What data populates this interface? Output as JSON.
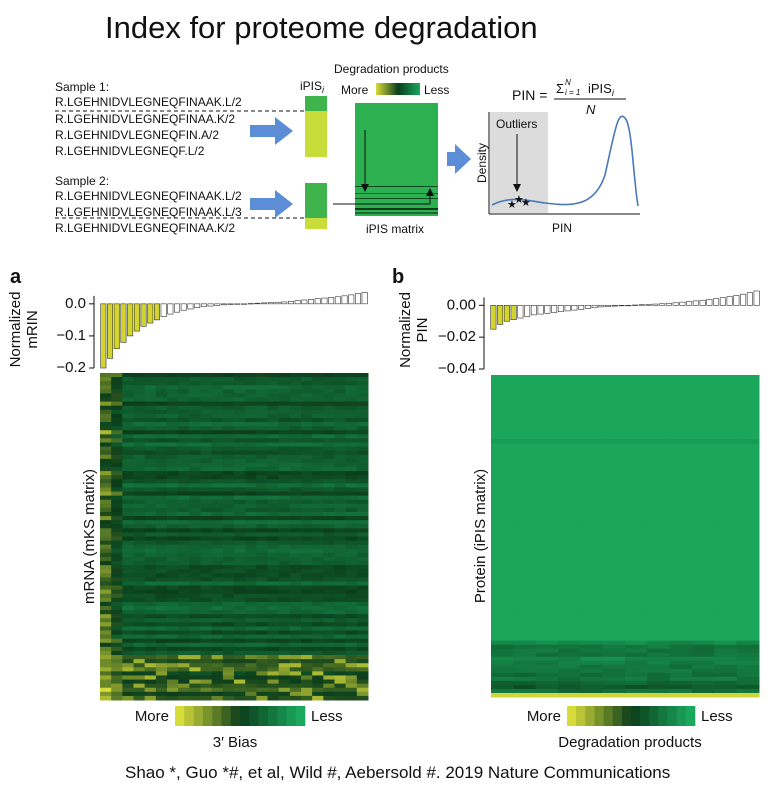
{
  "title": "Index for proteome degradation",
  "schematic": {
    "sample1_label": "Sample 1:",
    "sample1_peptides": [
      "R.LGEHNIDVLEGNEQFINAAK.L/2",
      "R.LGEHNIDVLEGNEQFINAA.K/2",
      "R.LGEHNIDVLEGNEQFIN.A/2",
      "R.LGEHNIDVLEGNEQF.L/2"
    ],
    "sample2_label": "Sample 2:",
    "sample2_peptides": [
      "R.LGEHNIDVLEGNEQFINAAK.L/2",
      "R.LGEHNIDVLEGNEQFINAAK.L/3",
      "R.LGEHNIDVLEGNEQFINAA.K/2"
    ],
    "ipis_label": "iPIS",
    "ipis_subscript": "i",
    "degradation_label": "Degradation products",
    "more": "More",
    "less": "Less",
    "matrix_label": "iPIS matrix",
    "formula": {
      "lhs": "PIN =",
      "sum": "Σ",
      "lower": "i = 1",
      "upper": "N",
      "term": "iPIS",
      "term_subscript": "i",
      "denominator": "N"
    },
    "density_label": "Density",
    "outliers_label": "Outliers",
    "pin_label": "PIN"
  },
  "panels": [
    {
      "letter": "a",
      "heatmap_label": "mRNA (mKS matrix)",
      "more": "More",
      "less": "Less",
      "xlabel": "3′ Bias"
    },
    {
      "letter": "b",
      "heatmap_label": "Protein (iPIS matrix)",
      "more": "More",
      "less": "Less",
      "xlabel": "Degradation products"
    }
  ],
  "chart_data": [
    {
      "type": "bar",
      "ylabel": [
        "Normalized",
        "mRIN"
      ],
      "categories": [
        null,
        null,
        null,
        null,
        null,
        null,
        null,
        null,
        null,
        null,
        null,
        null,
        null,
        null,
        null,
        null,
        null,
        null,
        null,
        null,
        null,
        null,
        null,
        null,
        null,
        null,
        null,
        null,
        null,
        null,
        null,
        null,
        null,
        null,
        null,
        null,
        null,
        null,
        null,
        null
      ],
      "values": [
        -0.2,
        -0.17,
        -0.14,
        -0.12,
        -0.1,
        -0.085,
        -0.07,
        -0.06,
        -0.05,
        -0.04,
        -0.032,
        -0.026,
        -0.02,
        -0.016,
        -0.012,
        -0.009,
        -0.007,
        -0.005,
        -0.003,
        -0.002,
        -0.001,
        0,
        0.001,
        0.002,
        0.003,
        0.004,
        0.005,
        0.006,
        0.008,
        0.01,
        0.012,
        0.014,
        0.016,
        0.018,
        0.02,
        0.022,
        0.025,
        0.028,
        0.032,
        0.036
      ],
      "colors": [
        "#d4d42e",
        "#d4d42e",
        "#d4d42e",
        "#d4d42e",
        "#d4d42e",
        "#d4d42e",
        "#d4d42e",
        "#d4d42e",
        "#d4d42e",
        "#ffffff",
        "#ffffff",
        "#ffffff",
        "#ffffff",
        "#ffffff",
        "#ffffff",
        "#ffffff",
        "#ffffff",
        "#ffffff",
        "#ffffff",
        "#ffffff",
        "#ffffff",
        "#ffffff",
        "#ffffff",
        "#ffffff",
        "#ffffff",
        "#ffffff",
        "#ffffff",
        "#ffffff",
        "#ffffff",
        "#ffffff",
        "#ffffff",
        "#ffffff",
        "#ffffff",
        "#ffffff",
        "#ffffff",
        "#ffffff",
        "#ffffff",
        "#ffffff",
        "#ffffff",
        "#ffffff"
      ],
      "ylim": [
        -0.2,
        0.04
      ],
      "yticks": [
        {
          "value": 0,
          "label": "0.0"
        },
        {
          "value": -0.1,
          "label": "−0.1"
        },
        {
          "value": -0.2,
          "label": "−0.2"
        }
      ]
    },
    {
      "type": "bar",
      "ylabel": [
        "Normalized",
        "PIN"
      ],
      "categories": [
        null,
        null,
        null,
        null,
        null,
        null,
        null,
        null,
        null,
        null,
        null,
        null,
        null,
        null,
        null,
        null,
        null,
        null,
        null,
        null,
        null,
        null,
        null,
        null,
        null,
        null,
        null,
        null,
        null,
        null,
        null,
        null,
        null,
        null,
        null,
        null,
        null,
        null,
        null,
        null
      ],
      "values": [
        -0.015,
        -0.012,
        -0.01,
        -0.009,
        -0.008,
        -0.007,
        -0.006,
        -0.0055,
        -0.005,
        -0.0045,
        -0.004,
        -0.0035,
        -0.003,
        -0.0025,
        -0.002,
        -0.0015,
        -0.001,
        -0.0008,
        -0.0005,
        -0.0003,
        0,
        0.0002,
        0.0004,
        0.0006,
        0.0008,
        0.001,
        0.0013,
        0.0016,
        0.002,
        0.0024,
        0.0028,
        0.0032,
        0.0037,
        0.0042,
        0.0048,
        0.0055,
        0.0062,
        0.007,
        0.008,
        0.009
      ],
      "colors": [
        "#d4d42e",
        "#d4d42e",
        "#d4d42e",
        "#d4d42e",
        "#ffffff",
        "#ffffff",
        "#ffffff",
        "#ffffff",
        "#ffffff",
        "#ffffff",
        "#ffffff",
        "#ffffff",
        "#ffffff",
        "#ffffff",
        "#ffffff",
        "#ffffff",
        "#ffffff",
        "#ffffff",
        "#ffffff",
        "#ffffff",
        "#ffffff",
        "#ffffff",
        "#ffffff",
        "#ffffff",
        "#ffffff",
        "#ffffff",
        "#ffffff",
        "#ffffff",
        "#ffffff",
        "#ffffff",
        "#ffffff",
        "#ffffff",
        "#ffffff",
        "#ffffff",
        "#ffffff",
        "#ffffff",
        "#ffffff",
        "#ffffff",
        "#ffffff",
        "#ffffff"
      ],
      "ylim": [
        -0.04,
        0.009
      ],
      "yticks": [
        {
          "value": 0,
          "label": "0.00"
        },
        {
          "value": -0.02,
          "label": "−0.02"
        },
        {
          "value": -0.04,
          "label": "−0.04"
        }
      ]
    }
  ],
  "citation": "Shao *, Guo *#, et al, Wild #, Aebersold #. 2019 Nature Communications"
}
